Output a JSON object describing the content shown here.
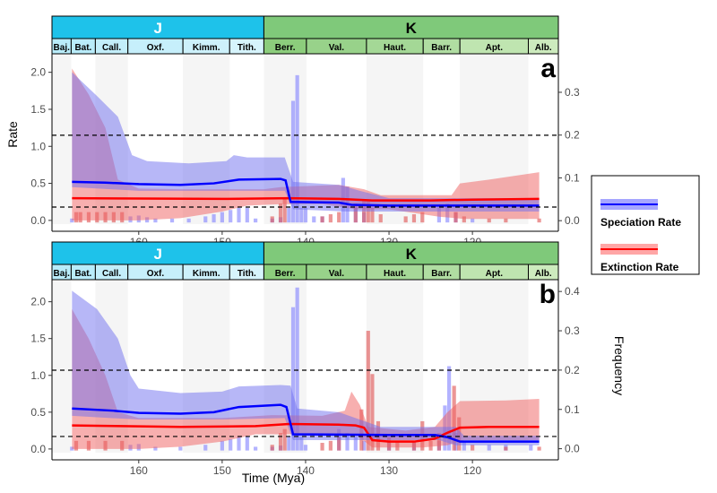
{
  "chart_data": [
    {
      "type": "area",
      "panel_label": "a",
      "ylabel": "Rate",
      "ylabel_right": "",
      "xlabel": "",
      "xlim": [
        170.4,
        109.7
      ],
      "ylim": [
        -0.05,
        2.25
      ],
      "ylim_right": [
        -0.008,
        0.39
      ],
      "yticks": [
        "0.0",
        "0.5",
        "1.0",
        "1.5",
        "2.0"
      ],
      "yticks_right": [
        "0.0",
        "0.1",
        "0.2",
        "0.3"
      ],
      "xticks": [
        "160",
        "150",
        "140",
        "130",
        "120"
      ],
      "dashed_lines_rate": [
        1.15,
        0.18
      ],
      "speciation": {
        "line": [
          [
            168,
            0.52
          ],
          [
            164,
            0.51
          ],
          [
            160,
            0.49
          ],
          [
            155,
            0.48
          ],
          [
            151,
            0.5
          ],
          [
            148,
            0.55
          ],
          [
            143,
            0.56
          ],
          [
            142.4,
            0.54
          ],
          [
            141.8,
            0.25
          ],
          [
            136,
            0.24
          ],
          [
            134.5,
            0.21
          ],
          [
            130,
            0.2
          ],
          [
            112,
            0.2
          ]
        ],
        "upper": [
          [
            168,
            2.0
          ],
          [
            165,
            1.68
          ],
          [
            162.5,
            1.4
          ],
          [
            160.8,
            0.88
          ],
          [
            159,
            0.8
          ],
          [
            154,
            0.77
          ],
          [
            149.5,
            0.8
          ],
          [
            148.6,
            0.88
          ],
          [
            147,
            0.85
          ],
          [
            142.5,
            0.85
          ],
          [
            141.5,
            0.52
          ],
          [
            136,
            0.48
          ],
          [
            133.5,
            0.4
          ],
          [
            130,
            0.3
          ],
          [
            112,
            0.3
          ]
        ],
        "lower": [
          [
            168,
            0.45
          ],
          [
            160,
            0.4
          ],
          [
            150,
            0.4
          ],
          [
            142.5,
            0.4
          ],
          [
            141.5,
            0.15
          ],
          [
            135,
            0.12
          ],
          [
            130,
            0.12
          ],
          [
            112,
            0.12
          ]
        ]
      },
      "extinction": {
        "line": [
          [
            168,
            0.3
          ],
          [
            150,
            0.29
          ],
          [
            142,
            0.3
          ],
          [
            136,
            0.29
          ],
          [
            132,
            0.27
          ],
          [
            125,
            0.27
          ],
          [
            120,
            0.28
          ],
          [
            112,
            0.29
          ]
        ],
        "upper": [
          [
            168,
            2.05
          ],
          [
            166,
            1.7
          ],
          [
            164,
            1.25
          ],
          [
            162.5,
            0.55
          ],
          [
            160,
            0.43
          ],
          [
            155,
            0.42
          ],
          [
            145,
            0.42
          ],
          [
            143,
            0.45
          ],
          [
            136,
            0.48
          ],
          [
            133,
            0.42
          ],
          [
            131,
            0.34
          ],
          [
            122.5,
            0.34
          ],
          [
            121.5,
            0.5
          ],
          [
            118,
            0.55
          ],
          [
            112,
            0.65
          ]
        ],
        "lower": [
          [
            168,
            0.0
          ],
          [
            160,
            0.0
          ],
          [
            155,
            0.03
          ],
          [
            150,
            0.12
          ],
          [
            147,
            0.2
          ],
          [
            143,
            0.22
          ],
          [
            138,
            0.22
          ],
          [
            134,
            0.15
          ],
          [
            130,
            0.15
          ],
          [
            124,
            0.05
          ],
          [
            121,
            0.02
          ],
          [
            112,
            0.02
          ]
        ]
      },
      "speciation_freq": [
        [
          168,
          0.005
        ],
        [
          161,
          0.01
        ],
        [
          160,
          0.012
        ],
        [
          159,
          0.008
        ],
        [
          158,
          0.005
        ],
        [
          156,
          0.005
        ],
        [
          154,
          0.005
        ],
        [
          152,
          0.01
        ],
        [
          151,
          0.015
        ],
        [
          150,
          0.02
        ],
        [
          149,
          0.025
        ],
        [
          148,
          0.03
        ],
        [
          147,
          0.03
        ],
        [
          146,
          0.005
        ],
        [
          144,
          0.005
        ],
        [
          143,
          0.008
        ],
        [
          142,
          0.03
        ],
        [
          141.5,
          0.28
        ],
        [
          141,
          0.34
        ],
        [
          140.5,
          0.03
        ],
        [
          140,
          0.03
        ],
        [
          139,
          0.01
        ],
        [
          138,
          0.01
        ],
        [
          135.5,
          0.1
        ],
        [
          135,
          0.08
        ],
        [
          134,
          0.03
        ],
        [
          133,
          0.02
        ],
        [
          124,
          0.03
        ],
        [
          123,
          0.04
        ],
        [
          122,
          0.02
        ],
        [
          120,
          0.005
        ]
      ],
      "extinction_freq": [
        [
          167.5,
          0.02
        ],
        [
          167,
          0.02
        ],
        [
          166,
          0.02
        ],
        [
          165,
          0.02
        ],
        [
          164,
          0.02
        ],
        [
          163,
          0.02
        ],
        [
          162,
          0.02
        ],
        [
          144,
          0.01
        ],
        [
          143,
          0.04
        ],
        [
          142.5,
          0.05
        ],
        [
          138,
          0.01
        ],
        [
          137,
          0.015
        ],
        [
          136,
          0.02
        ],
        [
          134,
          0.04
        ],
        [
          133,
          0.05
        ],
        [
          132.5,
          0.045
        ],
        [
          132,
          0.03
        ],
        [
          131,
          0.015
        ],
        [
          128,
          0.01
        ],
        [
          127,
          0.015
        ],
        [
          126,
          0.02
        ],
        [
          122,
          0.02
        ],
        [
          121,
          0.01
        ],
        [
          118,
          0.005
        ],
        [
          116,
          0.005
        ],
        [
          112,
          0.005
        ]
      ]
    },
    {
      "type": "area",
      "panel_label": "b",
      "ylabel": "Rate",
      "ylabel_right": "Frequency",
      "xlabel": "Time (Mya)",
      "xlim": [
        170.4,
        109.7
      ],
      "ylim": [
        -0.05,
        2.3
      ],
      "ylim_right": [
        -0.01,
        0.43
      ],
      "yticks": [
        "0.0",
        "0.5",
        "1.0",
        "1.5",
        "2.0"
      ],
      "yticks_right": [
        "0.0",
        "0.1",
        "0.2",
        "0.3",
        "0.4"
      ],
      "xticks": [
        "160",
        "150",
        "140",
        "130",
        "120"
      ],
      "dashed_lines_rate": [
        1.07,
        0.17
      ],
      "speciation": {
        "line": [
          [
            168,
            0.55
          ],
          [
            163,
            0.52
          ],
          [
            160,
            0.49
          ],
          [
            155,
            0.48
          ],
          [
            151,
            0.5
          ],
          [
            148,
            0.57
          ],
          [
            143,
            0.6
          ],
          [
            142.3,
            0.57
          ],
          [
            141.5,
            0.2
          ],
          [
            130,
            0.19
          ],
          [
            124.5,
            0.19
          ],
          [
            123,
            0.16
          ],
          [
            121.5,
            0.1
          ],
          [
            112,
            0.1
          ]
        ],
        "upper": [
          [
            168,
            2.15
          ],
          [
            165,
            1.9
          ],
          [
            162.5,
            1.5
          ],
          [
            161,
            1.0
          ],
          [
            160,
            0.82
          ],
          [
            155,
            0.76
          ],
          [
            150,
            0.78
          ],
          [
            148,
            0.85
          ],
          [
            143,
            0.87
          ],
          [
            141.8,
            0.86
          ],
          [
            141,
            0.55
          ],
          [
            136,
            0.5
          ],
          [
            131,
            0.3
          ],
          [
            125,
            0.3
          ],
          [
            122,
            0.3
          ],
          [
            121,
            0.18
          ],
          [
            112,
            0.18
          ]
        ],
        "lower": [
          [
            168,
            0.45
          ],
          [
            160,
            0.4
          ],
          [
            150,
            0.4
          ],
          [
            142.5,
            0.42
          ],
          [
            141.5,
            0.12
          ],
          [
            130,
            0.12
          ],
          [
            124,
            0.12
          ],
          [
            122,
            0.05
          ],
          [
            112,
            0.05
          ]
        ]
      },
      "extinction": {
        "line": [
          [
            168,
            0.32
          ],
          [
            155,
            0.3
          ],
          [
            146,
            0.31
          ],
          [
            142,
            0.34
          ],
          [
            136,
            0.33
          ],
          [
            134,
            0.32
          ],
          [
            133,
            0.29
          ],
          [
            132,
            0.12
          ],
          [
            130,
            0.1
          ],
          [
            127,
            0.1
          ],
          [
            124.5,
            0.14
          ],
          [
            123,
            0.22
          ],
          [
            121.5,
            0.29
          ],
          [
            118,
            0.3
          ],
          [
            112,
            0.3
          ]
        ],
        "upper": [
          [
            168,
            1.9
          ],
          [
            166,
            1.5
          ],
          [
            164,
            1.0
          ],
          [
            162.5,
            0.5
          ],
          [
            160,
            0.42
          ],
          [
            150,
            0.42
          ],
          [
            144,
            0.46
          ],
          [
            138,
            0.45
          ],
          [
            135.3,
            0.52
          ],
          [
            134.5,
            0.78
          ],
          [
            133.5,
            0.6
          ],
          [
            132.5,
            0.3
          ],
          [
            128,
            0.25
          ],
          [
            124.5,
            0.3
          ],
          [
            123,
            0.5
          ],
          [
            121.5,
            0.65
          ],
          [
            116,
            0.66
          ],
          [
            112,
            0.68
          ]
        ],
        "lower": [
          [
            168,
            0.0
          ],
          [
            160,
            0.0
          ],
          [
            155,
            0.03
          ],
          [
            150,
            0.1
          ],
          [
            146,
            0.2
          ],
          [
            141,
            0.2
          ],
          [
            134,
            0.2
          ],
          [
            132,
            0.02
          ],
          [
            126,
            0.02
          ],
          [
            123,
            0.05
          ],
          [
            121,
            0.12
          ],
          [
            112,
            0.12
          ]
        ]
      },
      "speciation_freq": [
        [
          168,
          0.005
        ],
        [
          161,
          0.01
        ],
        [
          160,
          0.012
        ],
        [
          158,
          0.005
        ],
        [
          155,
          0.005
        ],
        [
          152,
          0.01
        ],
        [
          150,
          0.02
        ],
        [
          149,
          0.025
        ],
        [
          148,
          0.03
        ],
        [
          147,
          0.03
        ],
        [
          146,
          0.005
        ],
        [
          144,
          0.005
        ],
        [
          143,
          0.008
        ],
        [
          142,
          0.03
        ],
        [
          141.5,
          0.36
        ],
        [
          141,
          0.41
        ],
        [
          140.5,
          0.03
        ],
        [
          140,
          0.01
        ],
        [
          136,
          0.05
        ],
        [
          135,
          0.04
        ],
        [
          134,
          0.03
        ],
        [
          133,
          0.02
        ],
        [
          130,
          0.02
        ],
        [
          127,
          0.02
        ],
        [
          124,
          0.02
        ],
        [
          123.3,
          0.11
        ],
        [
          122.8,
          0.21
        ],
        [
          122,
          0.04
        ],
        [
          121,
          0.02
        ],
        [
          118,
          0.01
        ],
        [
          116,
          0.01
        ],
        [
          113,
          0.01
        ]
      ],
      "extinction_freq": [
        [
          167.5,
          0.02
        ],
        [
          166,
          0.02
        ],
        [
          164,
          0.02
        ],
        [
          162,
          0.02
        ],
        [
          144,
          0.01
        ],
        [
          143,
          0.04
        ],
        [
          142.5,
          0.05
        ],
        [
          138,
          0.015
        ],
        [
          137,
          0.02
        ],
        [
          136,
          0.03
        ],
        [
          133.3,
          0.1
        ],
        [
          132.5,
          0.3
        ],
        [
          132,
          0.19
        ],
        [
          131.3,
          0.07
        ],
        [
          130,
          0.03
        ],
        [
          129,
          0.02
        ],
        [
          127,
          0.02
        ],
        [
          126,
          0.07
        ],
        [
          125,
          0.02
        ],
        [
          124,
          0.04
        ],
        [
          122.2,
          0.16
        ],
        [
          121.6,
          0.08
        ],
        [
          120,
          0.01
        ],
        [
          116,
          0.005
        ],
        [
          112,
          0.005
        ]
      ]
    }
  ],
  "timescale": {
    "periods": [
      {
        "label": "J",
        "start": 170.4,
        "end": 145.0,
        "color": "#1ec2ea",
        "text_color": "#ffffff"
      },
      {
        "label": "K",
        "start": 145.0,
        "end": 109.7,
        "color": "#7fc97a",
        "text_color": "#000000"
      }
    ],
    "stages": [
      {
        "label": "Baj.",
        "start": 170.4,
        "end": 168.1,
        "color": "#b9ecfa"
      },
      {
        "label": "Bat.",
        "start": 168.1,
        "end": 165.2,
        "color": "#b9ecfa"
      },
      {
        "label": "Call.",
        "start": 165.2,
        "end": 161.3,
        "color": "#c3eefa"
      },
      {
        "label": "Oxf.",
        "start": 161.3,
        "end": 154.7,
        "color": "#c6effb"
      },
      {
        "label": "Kimm.",
        "start": 154.7,
        "end": 149.1,
        "color": "#cdf1fb"
      },
      {
        "label": "Tith.",
        "start": 149.1,
        "end": 145.0,
        "color": "#d6f4fc"
      },
      {
        "label": "Berr.",
        "start": 145.0,
        "end": 139.9,
        "color": "#8ccd7c"
      },
      {
        "label": "Val.",
        "start": 139.9,
        "end": 132.7,
        "color": "#98d28a"
      },
      {
        "label": "Haut.",
        "start": 132.7,
        "end": 125.9,
        "color": "#a4d896"
      },
      {
        "label": "Barr.",
        "start": 125.9,
        "end": 121.5,
        "color": "#b0dda2"
      },
      {
        "label": "Apt.",
        "start": 121.5,
        "end": 113.3,
        "color": "#bfe5b0"
      },
      {
        "label": "Alb.",
        "start": 113.3,
        "end": 109.7,
        "color": "#cdebbe"
      }
    ]
  },
  "legend": {
    "placement": "right",
    "items": [
      {
        "label": "Speciation Rate",
        "line_color": "#0000ff",
        "band_color": "#8080ff"
      },
      {
        "label": "Extinction Rate",
        "line_color": "#ff0000",
        "band_color": "#ff8080"
      }
    ]
  },
  "colors": {
    "speciation": "#0000ff",
    "extinction": "#ff0000",
    "shade": "#f5f5f5"
  }
}
